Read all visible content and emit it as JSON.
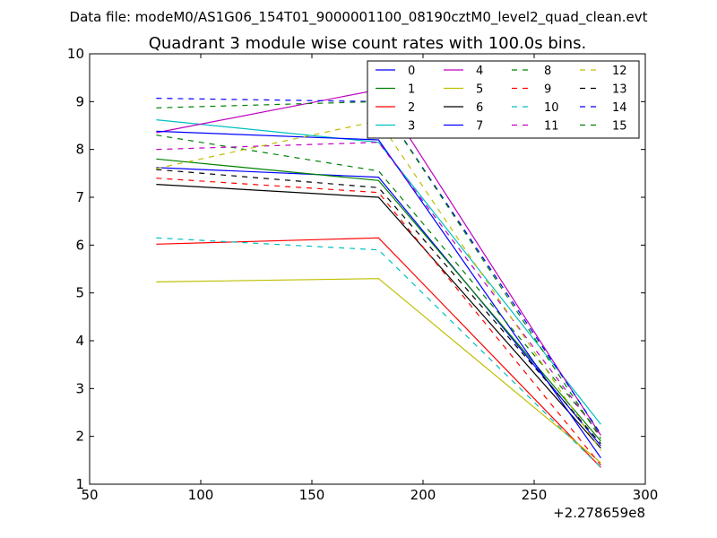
{
  "chart_data": {
    "type": "line",
    "suptitle": "Data file: modeM0/AS1G06_154T01_9000001100_08190cztM0_level2_quad_clean.evt",
    "title": "Quadrant 3 module wise count rates with 100.0s bins.",
    "xlabel": "",
    "ylabel": "",
    "x_offset_label": "+2.278659e8",
    "xlim": [
      50,
      300
    ],
    "ylim": [
      1,
      10
    ],
    "xticks": [
      "50",
      "100",
      "150",
      "200",
      "250",
      "300"
    ],
    "yticks": [
      "1",
      "2",
      "3",
      "4",
      "5",
      "6",
      "7",
      "8",
      "9",
      "10"
    ],
    "x": [
      80,
      180,
      280
    ],
    "legend_position": "top-right",
    "series": [
      {
        "name": "0",
        "color": "#0000ff",
        "dash": "solid",
        "values": [
          7.62,
          7.42,
          1.8
        ]
      },
      {
        "name": "1",
        "color": "#008000",
        "dash": "solid",
        "values": [
          7.8,
          7.35,
          1.9
        ]
      },
      {
        "name": "2",
        "color": "#ff0000",
        "dash": "solid",
        "values": [
          6.02,
          6.15,
          1.35
        ]
      },
      {
        "name": "3",
        "color": "#00bfbf",
        "dash": "solid",
        "values": [
          8.62,
          8.15,
          2.25
        ]
      },
      {
        "name": "4",
        "color": "#bf00bf",
        "dash": "solid",
        "values": [
          8.35,
          9.25,
          2.02
        ]
      },
      {
        "name": "5",
        "color": "#bfbf00",
        "dash": "solid",
        "values": [
          5.23,
          5.3,
          1.45
        ]
      },
      {
        "name": "6",
        "color": "#000000",
        "dash": "solid",
        "values": [
          7.27,
          7.0,
          1.75
        ]
      },
      {
        "name": "7",
        "color": "#0000ff",
        "dash": "solid",
        "values": [
          8.38,
          8.2,
          1.55
        ]
      },
      {
        "name": "8",
        "color": "#008000",
        "dash": "dashed",
        "values": [
          8.3,
          7.55,
          2.05
        ]
      },
      {
        "name": "9",
        "color": "#ff0000",
        "dash": "dashed",
        "values": [
          7.4,
          7.1,
          1.4
        ]
      },
      {
        "name": "10",
        "color": "#00bfbf",
        "dash": "dashed",
        "values": [
          6.15,
          5.9,
          1.35
        ]
      },
      {
        "name": "11",
        "color": "#bf00bf",
        "dash": "dashed",
        "values": [
          8.0,
          8.15,
          2.0
        ]
      },
      {
        "name": "12",
        "color": "#bfbf00",
        "dash": "dashed",
        "values": [
          7.6,
          8.6,
          1.7
        ]
      },
      {
        "name": "13",
        "color": "#000000",
        "dash": "dashed",
        "values": [
          7.58,
          7.2,
          1.85
        ]
      },
      {
        "name": "14",
        "color": "#0000ff",
        "dash": "dashed",
        "values": [
          9.07,
          9.0,
          2.05
        ]
      },
      {
        "name": "15",
        "color": "#008000",
        "dash": "dashed",
        "values": [
          8.87,
          9.0,
          1.95
        ]
      }
    ]
  }
}
